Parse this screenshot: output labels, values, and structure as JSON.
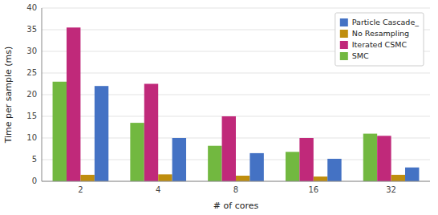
{
  "chart_data": {
    "type": "bar",
    "xlabel": "# of cores",
    "ylabel": "Time per sample (ms)",
    "categories": [
      "2",
      "4",
      "8",
      "16",
      "32"
    ],
    "series": [
      {
        "name": "SMC",
        "color": "#72b840",
        "values": [
          23.0,
          13.5,
          8.2,
          6.8,
          11.0
        ]
      },
      {
        "name": "Iterated CSMC",
        "color": "#c0297a",
        "values": [
          35.5,
          22.5,
          15.0,
          10.0,
          10.5
        ]
      },
      {
        "name": "No Resampling",
        "color": "#bf8e0e",
        "values": [
          1.5,
          1.6,
          1.3,
          1.1,
          1.5
        ]
      },
      {
        "name": "Particle Cascade_",
        "color": "#4472c4",
        "values": [
          22.0,
          10.0,
          6.5,
          5.2,
          3.2
        ]
      }
    ],
    "ylim": [
      0,
      40
    ],
    "yticks": [
      0,
      5,
      10,
      15,
      20,
      25,
      30,
      35,
      40
    ],
    "grid": true,
    "legend": "upper-right"
  }
}
